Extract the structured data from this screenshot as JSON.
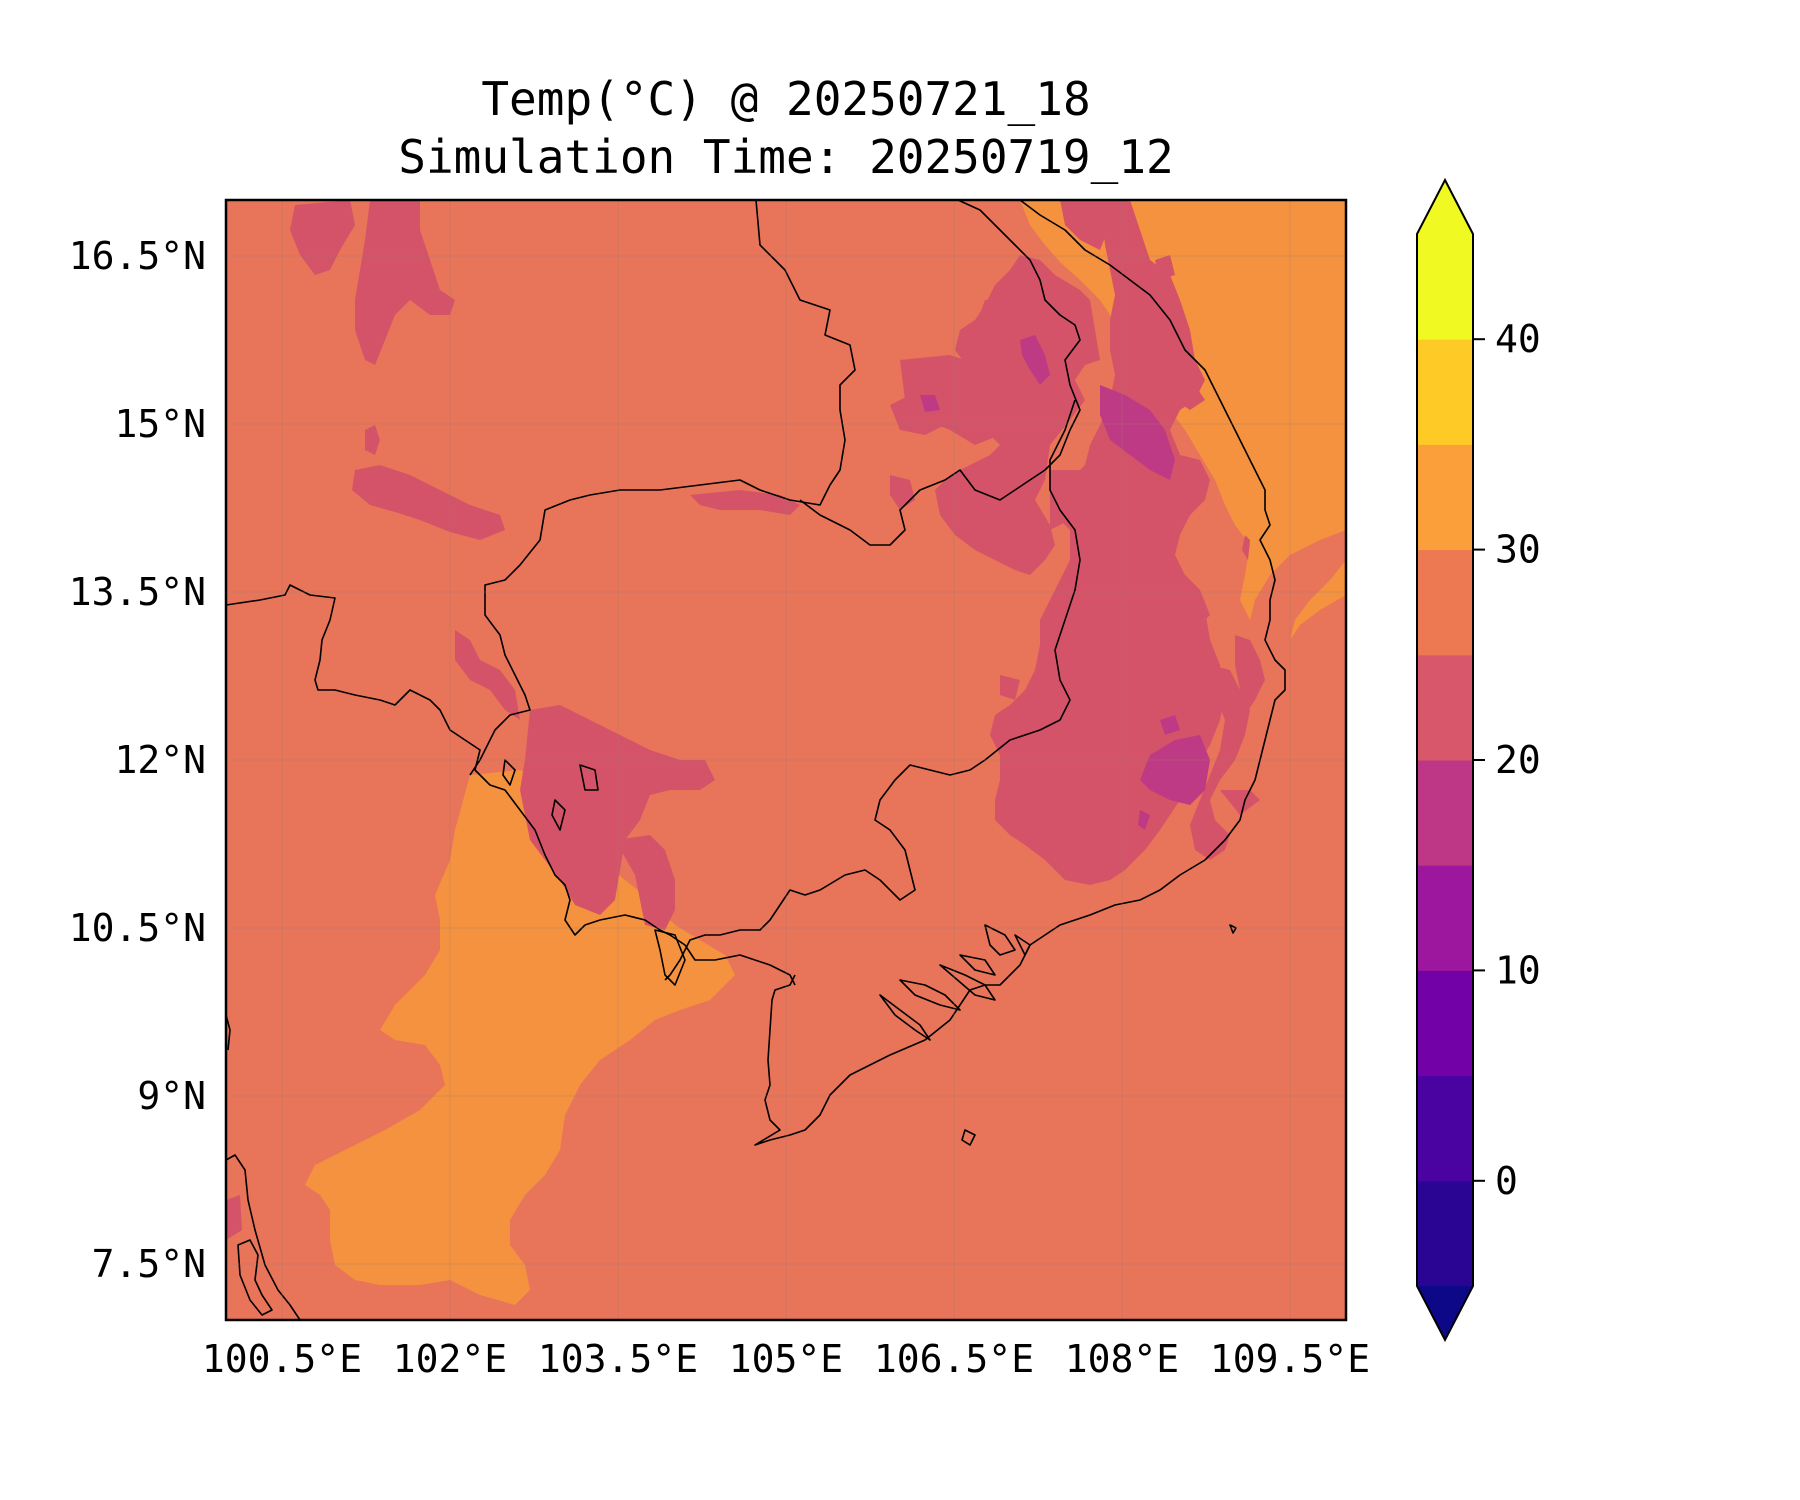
{
  "title": {
    "line1": "Temp(°C) @ 20250721_18",
    "line2": "Simulation Time: 20250719_12"
  },
  "map": {
    "lon_range": [
      100.0,
      110.0
    ],
    "lat_range": [
      7.0,
      17.0
    ],
    "x_ticks": [
      {
        "value": 100.5,
        "label": "100.5°E"
      },
      {
        "value": 102.0,
        "label": "102°E"
      },
      {
        "value": 103.5,
        "label": "103.5°E"
      },
      {
        "value": 105.0,
        "label": "105°E"
      },
      {
        "value": 106.5,
        "label": "106.5°E"
      },
      {
        "value": 108.0,
        "label": "108°E"
      },
      {
        "value": 109.5,
        "label": "109.5°E"
      }
    ],
    "y_ticks": [
      {
        "value": 16.5,
        "label": "16.5°N"
      },
      {
        "value": 15.0,
        "label": "15°N"
      },
      {
        "value": 13.5,
        "label": "13.5°N"
      },
      {
        "value": 12.0,
        "label": "12°N"
      },
      {
        "value": 10.5,
        "label": "10.5°N"
      },
      {
        "value": 9.0,
        "label": "9°N"
      },
      {
        "value": 7.5,
        "label": "7.5°N"
      }
    ],
    "grid": true,
    "background_band_color": "#e8745a"
  },
  "colorbar": {
    "min": -5,
    "max": 45,
    "extend": "both",
    "bands": [
      {
        "from": -5,
        "to": 0,
        "color": "#2a0593"
      },
      {
        "from": 0,
        "to": 5,
        "color": "#4a02a0"
      },
      {
        "from": 5,
        "to": 10,
        "color": "#7201a8"
      },
      {
        "from": 10,
        "to": 15,
        "color": "#9c179e"
      },
      {
        "from": 15,
        "to": 20,
        "color": "#bd3786"
      },
      {
        "from": 20,
        "to": 25,
        "color": "#d8576b"
      },
      {
        "from": 25,
        "to": 30,
        "color": "#ed7953"
      },
      {
        "from": 30,
        "to": 35,
        "color": "#fb9f3a"
      },
      {
        "from": 35,
        "to": 40,
        "color": "#fdca26"
      },
      {
        "from": 40,
        "to": 45,
        "color": "#f0f921"
      }
    ],
    "under_color": "#0d0887",
    "over_color": "#f0f921",
    "ticks": [
      {
        "value": 0,
        "label": "0"
      },
      {
        "value": 10,
        "label": "10"
      },
      {
        "value": 20,
        "label": "20"
      },
      {
        "value": 30,
        "label": "30"
      },
      {
        "value": 40,
        "label": "40"
      }
    ]
  }
}
